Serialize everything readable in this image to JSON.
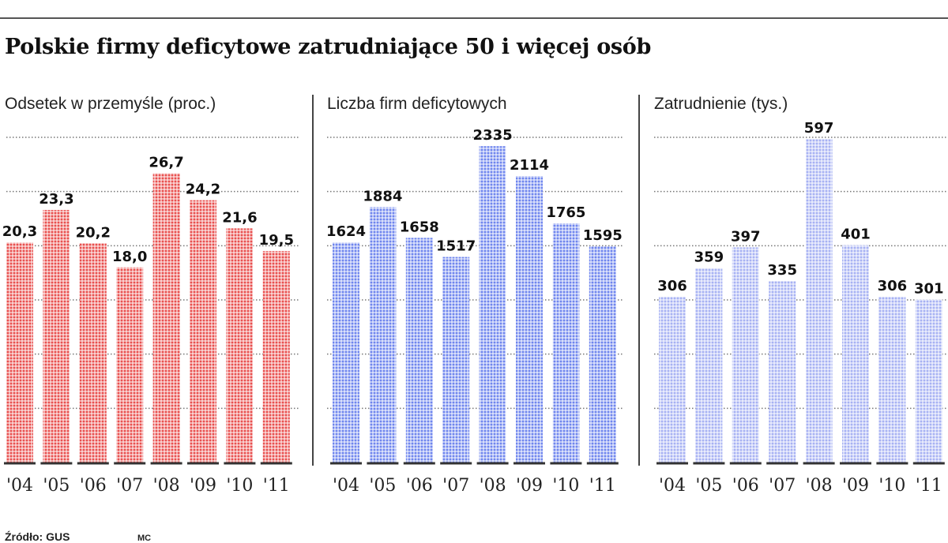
{
  "title": "Polskie firmy deficytowe zatrudniające 50 i więcej osób",
  "source": "Źródło: GUS",
  "author": "MC",
  "chart_data": [
    {
      "type": "bar",
      "title": "Odsetek w przemyśle (proc.)",
      "categories": [
        "'04",
        "'05",
        "'06",
        "'07",
        "'08",
        "'09",
        "'10",
        "'11"
      ],
      "values": [
        20.3,
        23.3,
        20.2,
        18.0,
        26.7,
        24.2,
        21.6,
        19.5
      ],
      "value_labels": [
        "20,3",
        "23,3",
        "20,2",
        "18,0",
        "26,7",
        "24,2",
        "21,6",
        "19,5"
      ],
      "ylim": [
        0,
        30
      ],
      "color": "#e8504f",
      "grid": true
    },
    {
      "type": "bar",
      "title": "Liczba firm deficytowych",
      "categories": [
        "'04",
        "'05",
        "'06",
        "'07",
        "'08",
        "'09",
        "'10",
        "'11"
      ],
      "values": [
        1624,
        1884,
        1658,
        1517,
        2335,
        2114,
        1765,
        1595
      ],
      "value_labels": [
        "1624",
        "1884",
        "1658",
        "1517",
        "2335",
        "2114",
        "1765",
        "1595"
      ],
      "ylim": [
        0,
        2400
      ],
      "color": "#6f86ee",
      "grid": true
    },
    {
      "type": "bar",
      "title": "Zatrudnienie (tys.)",
      "categories": [
        "'04",
        "'05",
        "'06",
        "'07",
        "'08",
        "'09",
        "'10",
        "'11"
      ],
      "values": [
        306,
        359,
        397,
        335,
        597,
        401,
        306,
        301
      ],
      "value_labels": [
        "306",
        "359",
        "397",
        "335",
        "597",
        "401",
        "306",
        "301"
      ],
      "ylim": [
        0,
        600
      ],
      "color": "#a7b2f3",
      "grid": true
    }
  ]
}
